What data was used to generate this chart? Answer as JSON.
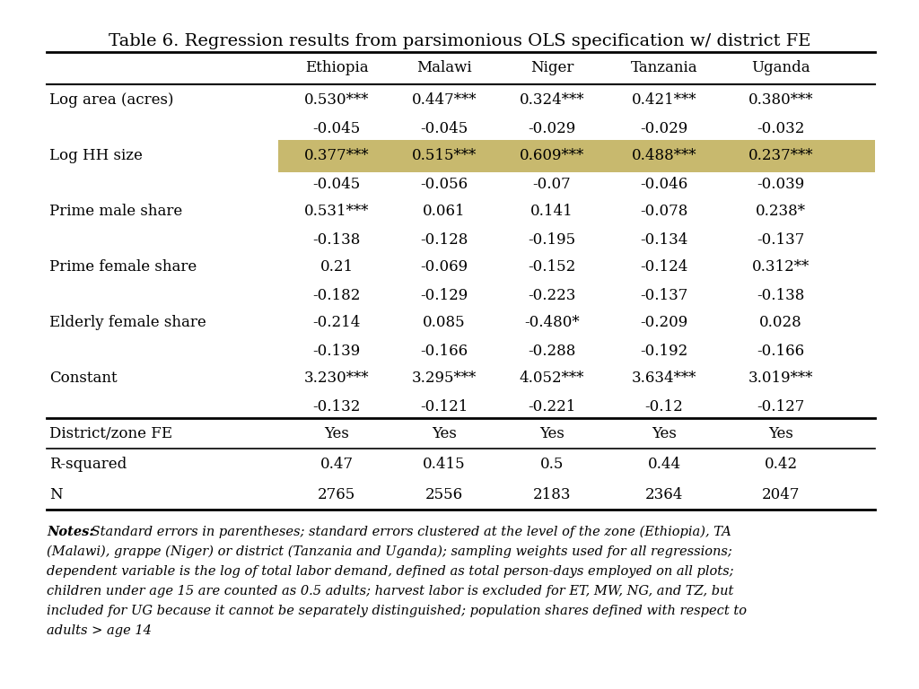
{
  "title": "Table 6. Regression results from parsimonious OLS specification w/ district FE",
  "columns": [
    "",
    "Ethiopia",
    "Malawi",
    "Niger",
    "Tanzania",
    "Uganda"
  ],
  "rows": [
    [
      "Log area (acres)",
      "0.530***",
      "0.447***",
      "0.324***",
      "0.421***",
      "0.380***"
    ],
    [
      "",
      "-0.045",
      "-0.045",
      "-0.029",
      "-0.029",
      "-0.032"
    ],
    [
      "Log HH size",
      "0.377***",
      "0.515***",
      "0.609***",
      "0.488***",
      "0.237***"
    ],
    [
      "",
      "-0.045",
      "-0.056",
      "-0.07",
      "-0.046",
      "-0.039"
    ],
    [
      "Prime male share",
      "0.531***",
      "0.061",
      "0.141",
      "-0.078",
      "0.238*"
    ],
    [
      "",
      "-0.138",
      "-0.128",
      "-0.195",
      "-0.134",
      "-0.137"
    ],
    [
      "Prime female share",
      "0.21",
      "-0.069",
      "-0.152",
      "-0.124",
      "0.312**"
    ],
    [
      "",
      "-0.182",
      "-0.129",
      "-0.223",
      "-0.137",
      "-0.138"
    ],
    [
      "Elderly female share",
      "-0.214",
      "0.085",
      "-0.480*",
      "-0.209",
      "0.028"
    ],
    [
      "",
      "-0.139",
      "-0.166",
      "-0.288",
      "-0.192",
      "-0.166"
    ],
    [
      "Constant",
      "3.230***",
      "3.295***",
      "4.052***",
      "3.634***",
      "3.019***"
    ],
    [
      "",
      "-0.132",
      "-0.121",
      "-0.221",
      "-0.12",
      "-0.127"
    ],
    [
      "District/zone FE",
      "Yes",
      "Yes",
      "Yes",
      "Yes",
      "Yes"
    ],
    [
      "R-squared",
      "0.47",
      "0.415",
      "0.5",
      "0.44",
      "0.42"
    ],
    [
      "N",
      "2765",
      "2556",
      "2183",
      "2364",
      "2047"
    ]
  ],
  "highlight_row": 2,
  "highlight_color": "#c8b96e",
  "notes_prefix": "Notes:",
  "notes_body": " Standard errors in parentheses; standard errors clustered at the level of the zone (Ethiopia), TA (Malawi), grappe (Niger) or district (Tanzania and Uganda); sampling weights used for all regressions; dependent variable is the log of total labor demand, defined as total person-days employed on all plots; children under age 15 are counted as 0.5 adults; harvest labor is excluded for ET, MW, NG, and TZ, but included for UG because it cannot be separately distinguished; population shares defined with respect to adults > age 14",
  "bg_color": "#ffffff",
  "text_color": "#000000",
  "font_size": 12,
  "title_font_size": 14
}
